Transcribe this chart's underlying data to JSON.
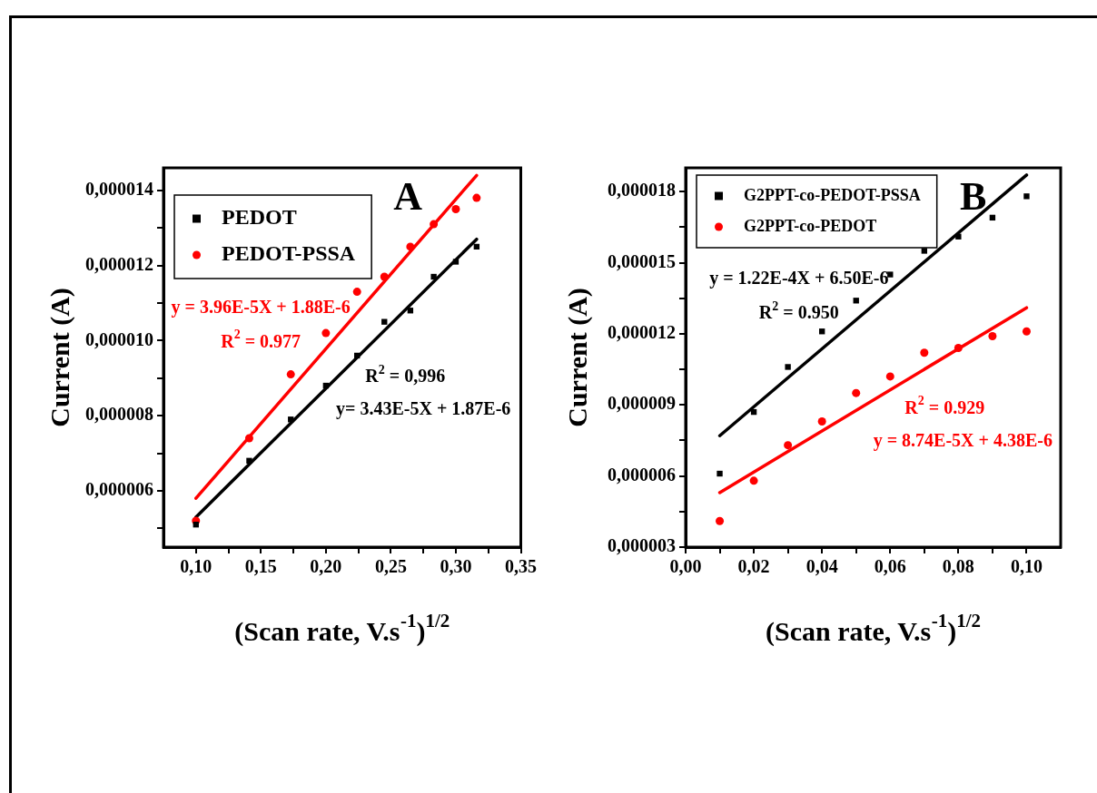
{
  "chart_data": [
    {
      "type": "scatter",
      "title": "A",
      "xlabel": "(Scan rate, V.s$^{-1}$)$^{1/2}$",
      "ylabel": "Current (A)",
      "legend": "top left",
      "xlim": [
        0.075,
        0.35
      ],
      "ylim": [
        4.5e-06,
        1.46e-05
      ],
      "xticks": [
        {
          "value": 0.1,
          "label": "0,10"
        },
        {
          "value": 0.125,
          "label": null
        },
        {
          "value": 0.15,
          "label": "0,15"
        },
        {
          "value": 0.175,
          "label": null
        },
        {
          "value": 0.2,
          "label": "0,20"
        },
        {
          "value": 0.225,
          "label": null
        },
        {
          "value": 0.25,
          "label": "0,25"
        },
        {
          "value": 0.275,
          "label": null
        },
        {
          "value": 0.3,
          "label": "0,30"
        },
        {
          "value": 0.325,
          "label": null
        },
        {
          "value": 0.35,
          "label": "0,35"
        }
      ],
      "yticks": [
        {
          "value": 5e-06,
          "label": null
        },
        {
          "value": 6e-06,
          "label": "0,000006"
        },
        {
          "value": 7e-06,
          "label": null
        },
        {
          "value": 8e-06,
          "label": "0,000008"
        },
        {
          "value": 9e-06,
          "label": null
        },
        {
          "value": 1e-05,
          "label": "0,000010"
        },
        {
          "value": 1.1e-05,
          "label": null
        },
        {
          "value": 1.2e-05,
          "label": "0,000012"
        },
        {
          "value": 1.3e-05,
          "label": null
        },
        {
          "value": 1.4e-05,
          "label": "0,000014"
        }
      ],
      "series": [
        {
          "name": "PEDOT",
          "type": "scatter",
          "marker": "square",
          "color": "#000000",
          "x": [
            0.1,
            0.141,
            0.173,
            0.2,
            0.224,
            0.245,
            0.265,
            0.283,
            0.3,
            0.316
          ],
          "values": [
            5.1e-06,
            6.8e-06,
            7.9e-06,
            8.8e-06,
            9.6e-06,
            1.05e-05,
            1.08e-05,
            1.17e-05,
            1.21e-05,
            1.25e-05
          ]
        },
        {
          "name": "PEDOT-PSSA",
          "type": "scatter",
          "marker": "circle",
          "color": "#ff0000",
          "x": [
            0.1,
            0.141,
            0.173,
            0.2,
            0.224,
            0.245,
            0.265,
            0.283,
            0.3,
            0.316
          ],
          "values": [
            5.2e-06,
            7.4e-06,
            9.1e-06,
            1.02e-05,
            1.13e-05,
            1.17e-05,
            1.25e-05,
            1.31e-05,
            1.35e-05,
            1.38e-05
          ]
        },
        {
          "type": "line",
          "color": "#000000",
          "x": [
            0.1,
            0.316
          ],
          "values": [
            5.3e-06,
            1.27e-05
          ]
        },
        {
          "type": "line",
          "color": "#ff0000",
          "x": [
            0.1,
            0.316
          ],
          "values": [
            5.8e-06,
            1.44e-05
          ]
        }
      ],
      "annotations": [
        "R$^{2}$ = 0,996",
        "y= 3.43E-5X + 1.87E-6",
        "y = 3.96E-5X + 1.88E-6",
        "R$^{2}$ = 0.977"
      ]
    },
    {
      "type": "scatter",
      "title": "B",
      "xlabel": "(Scan rate, V.s$^{-1}$)$^{1/2}$",
      "ylabel": "Current (A)",
      "legend": "top left",
      "xlim": [
        0,
        0.11
      ],
      "ylim": [
        3e-06,
        1.9e-05
      ],
      "xticks": [
        {
          "value": 0,
          "label": "0,00"
        },
        {
          "value": 0.01,
          "label": null
        },
        {
          "value": 0.02,
          "label": "0,02"
        },
        {
          "value": 0.03,
          "label": null
        },
        {
          "value": 0.04,
          "label": "0,04"
        },
        {
          "value": 0.05,
          "label": null
        },
        {
          "value": 0.06,
          "label": "0,06"
        },
        {
          "value": 0.07,
          "label": null
        },
        {
          "value": 0.08,
          "label": "0,08"
        },
        {
          "value": 0.09,
          "label": null
        },
        {
          "value": 0.1,
          "label": "0,10"
        }
      ],
      "yticks": [
        {
          "value": 3e-06,
          "label": "0,000003"
        },
        {
          "value": 4.5e-06,
          "label": null
        },
        {
          "value": 6e-06,
          "label": "0,000006"
        },
        {
          "value": 7.5e-06,
          "label": null
        },
        {
          "value": 9e-06,
          "label": "0,000009"
        },
        {
          "value": 1.05e-05,
          "label": null
        },
        {
          "value": 1.2e-05,
          "label": "0,000012"
        },
        {
          "value": 1.35e-05,
          "label": null
        },
        {
          "value": 1.5e-05,
          "label": "0,000015"
        },
        {
          "value": 1.65e-05,
          "label": null
        },
        {
          "value": 1.8e-05,
          "label": "0,000018"
        }
      ],
      "series": [
        {
          "name": "G2PPT-co-PEDOT-PSSA",
          "type": "scatter",
          "marker": "square",
          "color": "#000000",
          "x": [
            0.01,
            0.02,
            0.03,
            0.04,
            0.05,
            0.06,
            0.07,
            0.08,
            0.09,
            0.1
          ],
          "values": [
            6.1e-06,
            8.7e-06,
            1.06e-05,
            1.21e-05,
            1.34e-05,
            1.45e-05,
            1.55e-05,
            1.61e-05,
            1.69e-05,
            1.78e-05
          ]
        },
        {
          "name": "G2PPT-co-PEDOT",
          "type": "scatter",
          "marker": "circle",
          "color": "#ff0000",
          "x": [
            0.01,
            0.02,
            0.03,
            0.04,
            0.05,
            0.06,
            0.07,
            0.08,
            0.09,
            0.1
          ],
          "values": [
            4.1e-06,
            5.8e-06,
            7.3e-06,
            8.3e-06,
            9.5e-06,
            1.02e-05,
            1.12e-05,
            1.14e-05,
            1.19e-05,
            1.21e-05
          ]
        },
        {
          "type": "line",
          "color": "#000000",
          "x": [
            0.01,
            0.1
          ],
          "values": [
            7.7e-06,
            1.87e-05
          ]
        },
        {
          "type": "line",
          "color": "#ff0000",
          "x": [
            0.01,
            0.1
          ],
          "values": [
            5.3e-06,
            1.31e-05
          ]
        }
      ],
      "annotations": [
        "y = 1.22E-4X + 6.50E-6",
        "R$^{2}$ = 0.950",
        "R$^{2}$ = 0.929",
        "y = 8.74E-5X + 4.38E-6"
      ]
    }
  ]
}
